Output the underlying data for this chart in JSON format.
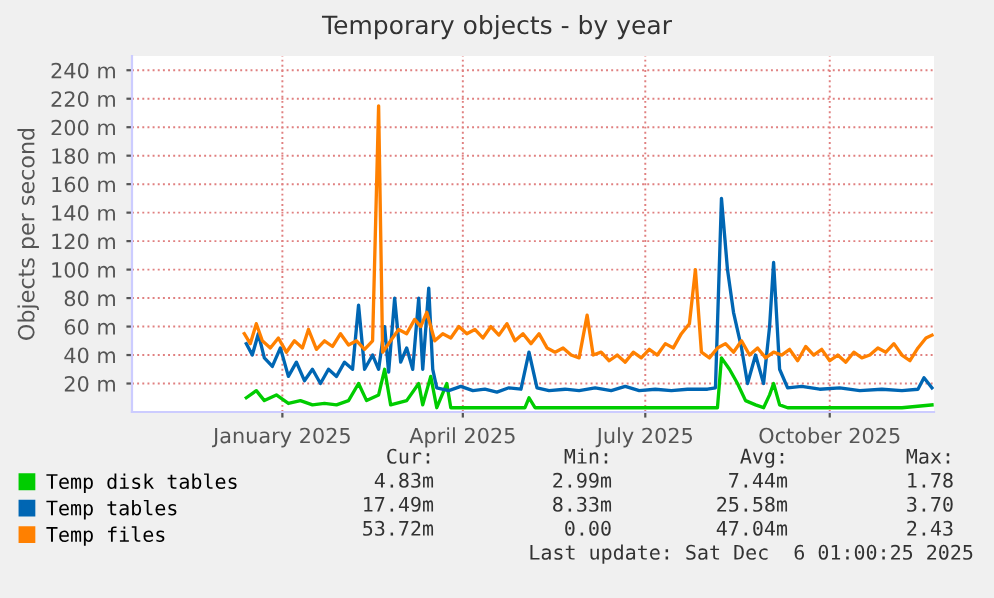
{
  "chart_data": {
    "type": "line",
    "title": "Temporary objects - by year",
    "ylabel": "Objects per second",
    "xlim": [
      "2024-11-01",
      "2025-12-06"
    ],
    "xticks": [
      {
        "value": "2025-01-15",
        "label": "January 2025"
      },
      {
        "value": "2025-04-15",
        "label": "April 2025"
      },
      {
        "value": "2025-07-15",
        "label": "July 2025"
      },
      {
        "value": "2025-10-15",
        "label": "October 2025"
      }
    ],
    "ylim": [
      0,
      250
    ],
    "yticks": [
      {
        "value": 20,
        "label": "20 m"
      },
      {
        "value": 40,
        "label": "40 m"
      },
      {
        "value": 60,
        "label": "60 m"
      },
      {
        "value": 80,
        "label": "80 m"
      },
      {
        "value": 100,
        "label": "100 m"
      },
      {
        "value": 120,
        "label": "120 m"
      },
      {
        "value": 140,
        "label": "140 m"
      },
      {
        "value": 160,
        "label": "160 m"
      },
      {
        "value": 180,
        "label": "180 m"
      },
      {
        "value": 200,
        "label": "200 m"
      },
      {
        "value": 220,
        "label": "220 m"
      },
      {
        "value": 240,
        "label": "240 m"
      }
    ],
    "grid": true,
    "legend": "bottom left",
    "marker": "none",
    "line_style": "solid",
    "series": [
      {
        "name": "Temp disk tables",
        "color": "#00cc00",
        "x": [
          "2024-12-28",
          "2025-01-02",
          "2025-01-06",
          "2025-01-12",
          "2025-01-18",
          "2025-01-24",
          "2025-01-30",
          "2025-02-05",
          "2025-02-11",
          "2025-02-17",
          "2025-02-22",
          "2025-02-26",
          "2025-03-04",
          "2025-03-07",
          "2025-03-10",
          "2025-03-18",
          "2025-03-24",
          "2025-03-26",
          "2025-03-30",
          "2025-04-02",
          "2025-04-07",
          "2025-04-09",
          "2025-04-20",
          "2025-05-10",
          "2025-05-16",
          "2025-05-18",
          "2025-05-21",
          "2025-06-15",
          "2025-07-15",
          "2025-08-10",
          "2025-08-20",
          "2025-08-22",
          "2025-08-26",
          "2025-08-30",
          "2025-09-03",
          "2025-09-08",
          "2025-09-12",
          "2025-09-15",
          "2025-09-17",
          "2025-09-20",
          "2025-09-24",
          "2025-10-20",
          "2025-11-20",
          "2025-12-05"
        ],
        "values": [
          10,
          15,
          8,
          12,
          6,
          8,
          5,
          6,
          5,
          8,
          20,
          8,
          12,
          30,
          5,
          8,
          20,
          5,
          25,
          3,
          20,
          3,
          3,
          3,
          3,
          10,
          3,
          3,
          3,
          3,
          3,
          38,
          30,
          20,
          8,
          5,
          3,
          12,
          20,
          5,
          3,
          3,
          3,
          5
        ]
      },
      {
        "name": "Temp tables",
        "color": "#0066b3",
        "x": [
          "2024-12-28",
          "2024-12-31",
          "2025-01-03",
          "2025-01-06",
          "2025-01-10",
          "2025-01-14",
          "2025-01-18",
          "2025-01-22",
          "2025-01-26",
          "2025-01-30",
          "2025-02-03",
          "2025-02-07",
          "2025-02-11",
          "2025-02-15",
          "2025-02-19",
          "2025-02-22",
          "2025-02-25",
          "2025-03-01",
          "2025-03-04",
          "2025-03-07",
          "2025-03-09",
          "2025-03-12",
          "2025-03-15",
          "2025-03-18",
          "2025-03-21",
          "2025-03-24",
          "2025-03-26",
          "2025-03-29",
          "2025-03-31",
          "2025-04-02",
          "2025-04-08",
          "2025-04-14",
          "2025-04-20",
          "2025-04-26",
          "2025-05-02",
          "2025-05-08",
          "2025-05-14",
          "2025-05-18",
          "2025-05-22",
          "2025-05-28",
          "2025-06-05",
          "2025-06-12",
          "2025-06-20",
          "2025-06-28",
          "2025-07-05",
          "2025-07-12",
          "2025-07-20",
          "2025-07-28",
          "2025-08-05",
          "2025-08-15",
          "2025-08-19",
          "2025-08-22",
          "2025-08-25",
          "2025-08-28",
          "2025-09-01",
          "2025-09-04",
          "2025-09-08",
          "2025-09-12",
          "2025-09-15",
          "2025-09-17",
          "2025-09-20",
          "2025-09-24",
          "2025-10-01",
          "2025-10-10",
          "2025-10-20",
          "2025-10-30",
          "2025-11-10",
          "2025-11-20",
          "2025-11-28",
          "2025-12-01",
          "2025-12-05"
        ],
        "values": [
          48,
          40,
          55,
          38,
          32,
          45,
          25,
          35,
          22,
          30,
          20,
          30,
          25,
          35,
          30,
          75,
          30,
          40,
          30,
          60,
          28,
          80,
          35,
          45,
          30,
          80,
          30,
          87,
          30,
          17,
          15,
          18,
          15,
          16,
          14,
          17,
          16,
          42,
          17,
          15,
          16,
          15,
          17,
          15,
          18,
          15,
          16,
          15,
          16,
          16,
          17,
          150,
          100,
          70,
          45,
          20,
          40,
          20,
          60,
          105,
          30,
          17,
          18,
          16,
          17,
          15,
          16,
          15,
          16,
          24,
          17
        ]
      },
      {
        "name": "Temp files",
        "color": "#ff8000",
        "x": [
          "2024-12-27",
          "2024-12-30",
          "2025-01-02",
          "2025-01-05",
          "2025-01-09",
          "2025-01-13",
          "2025-01-17",
          "2025-01-21",
          "2025-01-25",
          "2025-01-28",
          "2025-02-01",
          "2025-02-05",
          "2025-02-09",
          "2025-02-13",
          "2025-02-17",
          "2025-02-21",
          "2025-02-25",
          "2025-03-01",
          "2025-03-04",
          "2025-03-06",
          "2025-03-10",
          "2025-03-14",
          "2025-03-18",
          "2025-03-22",
          "2025-03-25",
          "2025-03-28",
          "2025-04-01",
          "2025-04-05",
          "2025-04-09",
          "2025-04-13",
          "2025-04-17",
          "2025-04-21",
          "2025-04-25",
          "2025-04-29",
          "2025-05-03",
          "2025-05-07",
          "2025-05-11",
          "2025-05-15",
          "2025-05-19",
          "2025-05-23",
          "2025-05-27",
          "2025-05-31",
          "2025-06-04",
          "2025-06-08",
          "2025-06-12",
          "2025-06-16",
          "2025-06-19",
          "2025-06-23",
          "2025-06-27",
          "2025-07-01",
          "2025-07-05",
          "2025-07-09",
          "2025-07-13",
          "2025-07-17",
          "2025-07-21",
          "2025-07-25",
          "2025-07-29",
          "2025-08-02",
          "2025-08-06",
          "2025-08-09",
          "2025-08-12",
          "2025-08-16",
          "2025-08-20",
          "2025-08-24",
          "2025-08-28",
          "2025-09-01",
          "2025-09-05",
          "2025-09-09",
          "2025-09-13",
          "2025-09-17",
          "2025-09-21",
          "2025-09-25",
          "2025-09-29",
          "2025-10-03",
          "2025-10-07",
          "2025-10-11",
          "2025-10-15",
          "2025-10-19",
          "2025-10-23",
          "2025-10-27",
          "2025-10-31",
          "2025-11-04",
          "2025-11-08",
          "2025-11-12",
          "2025-11-16",
          "2025-11-20",
          "2025-11-24",
          "2025-11-28",
          "2025-12-02",
          "2025-12-05"
        ],
        "values": [
          55,
          48,
          62,
          50,
          45,
          52,
          42,
          50,
          45,
          58,
          44,
          50,
          46,
          55,
          47,
          50,
          44,
          50,
          215,
          42,
          50,
          58,
          55,
          65,
          60,
          70,
          50,
          55,
          52,
          60,
          55,
          58,
          52,
          60,
          54,
          62,
          50,
          55,
          48,
          55,
          45,
          42,
          45,
          40,
          38,
          68,
          40,
          42,
          36,
          40,
          35,
          42,
          38,
          44,
          40,
          48,
          45,
          55,
          62,
          100,
          42,
          38,
          45,
          48,
          42,
          50,
          40,
          45,
          38,
          42,
          40,
          44,
          36,
          46,
          40,
          44,
          36,
          40,
          35,
          42,
          38,
          40,
          45,
          42,
          48,
          40,
          36,
          45,
          52,
          54
        ]
      }
    ],
    "annotations": [
      "Cur:",
      "Min:",
      "Avg:",
      "Max:",
      "4.83m",
      "2.99m",
      "7.44m",
      "1.78",
      "17.49m",
      "8.33m",
      "25.58m",
      "3.70",
      "53.72m",
      "0.00",
      "47.04m",
      "2.43",
      "Last update: Sat Dec  6 01:00:25 2025"
    ]
  }
}
